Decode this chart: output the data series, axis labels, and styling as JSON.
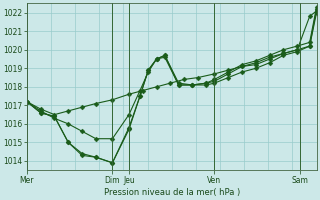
{
  "xlabel": "Pression niveau de la mer( hPa )",
  "ylim": [
    1013.5,
    1022.5
  ],
  "yticks": [
    1014,
    1015,
    1016,
    1017,
    1018,
    1019,
    1020,
    1021,
    1022
  ],
  "bg_color": "#cce8e8",
  "grid_color": "#99cccc",
  "line_color": "#1a5c1a",
  "day_positions": [
    0,
    62,
    74,
    136,
    198
  ],
  "day_labels": [
    "Mer",
    "Dim",
    "Jeu",
    "Ven",
    "Sam"
  ],
  "xlim": [
    0,
    210
  ],
  "num_grid_cols": 12,
  "line1_x": [
    0,
    10,
    20,
    30,
    40,
    50,
    62,
    74,
    84,
    94,
    104,
    114,
    124,
    136,
    146,
    156,
    166,
    176,
    186,
    196,
    205,
    210
  ],
  "line1_y": [
    1017.2,
    1016.8,
    1016.5,
    1016.7,
    1016.9,
    1017.1,
    1017.3,
    1017.6,
    1017.8,
    1018.0,
    1018.2,
    1018.4,
    1018.5,
    1018.7,
    1018.9,
    1019.1,
    1019.3,
    1019.6,
    1019.8,
    1020.0,
    1021.8,
    1022.1
  ],
  "line2_x": [
    0,
    10,
    20,
    30,
    40,
    50,
    62,
    74,
    82,
    88,
    94,
    100,
    110,
    120,
    130,
    136,
    146,
    156,
    166,
    176,
    186,
    196,
    205,
    210
  ],
  "line2_y": [
    1017.2,
    1016.7,
    1016.3,
    1016.0,
    1015.6,
    1015.2,
    1015.2,
    1016.5,
    1017.8,
    1018.8,
    1019.5,
    1019.7,
    1018.2,
    1018.1,
    1018.1,
    1018.2,
    1018.5,
    1018.8,
    1019.0,
    1019.3,
    1019.7,
    1019.9,
    1020.2,
    1022.0
  ],
  "line3_x": [
    0,
    10,
    20,
    30,
    40,
    50,
    62,
    74,
    82,
    88,
    94,
    100,
    110,
    120,
    130,
    136,
    146,
    156,
    166,
    176,
    186,
    196,
    205,
    210
  ],
  "line3_y": [
    1017.2,
    1016.6,
    1016.4,
    1015.0,
    1014.4,
    1014.2,
    1013.9,
    1015.7,
    1017.5,
    1018.9,
    1019.5,
    1019.6,
    1018.1,
    1018.1,
    1018.2,
    1018.3,
    1018.7,
    1019.1,
    1019.2,
    1019.5,
    1019.8,
    1020.0,
    1020.2,
    1022.2
  ],
  "line4_x": [
    0,
    10,
    20,
    30,
    40,
    50,
    62,
    74,
    82,
    88,
    94,
    100,
    110,
    120,
    130,
    136,
    146,
    156,
    166,
    176,
    186,
    196,
    205,
    210
  ],
  "line4_y": [
    1017.2,
    1016.6,
    1016.4,
    1015.0,
    1014.3,
    1014.2,
    1013.9,
    1015.8,
    1017.5,
    1018.9,
    1019.5,
    1019.7,
    1018.1,
    1018.1,
    1018.2,
    1018.4,
    1018.8,
    1019.2,
    1019.4,
    1019.7,
    1020.0,
    1020.2,
    1020.4,
    1022.3
  ]
}
